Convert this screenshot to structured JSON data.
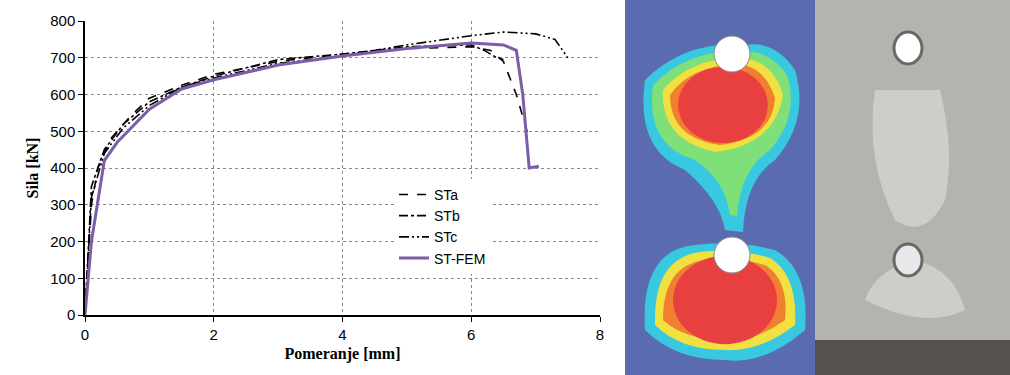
{
  "chart_data": {
    "type": "line",
    "x_label": "Pomeranje [mm]",
    "y_label": "Sila [kN]",
    "xlim": [
      0,
      8
    ],
    "xticks": [
      0,
      2,
      4,
      6,
      8
    ],
    "ylim": [
      0,
      800
    ],
    "yticks": [
      0,
      100,
      200,
      300,
      400,
      500,
      600,
      700,
      800
    ],
    "grid": true,
    "legend": "lower right",
    "series": [
      {
        "name": "STa",
        "color": "#000000",
        "line_style": "dash",
        "x": [
          0,
          0.1,
          0.2,
          0.4,
          0.7,
          1,
          1.5,
          2,
          3,
          4,
          5,
          6,
          6.3,
          6.5,
          6.7,
          6.9
        ],
        "values": [
          0,
          300,
          400,
          480,
          540,
          590,
          625,
          655,
          690,
          710,
          725,
          730,
          720,
          690,
          600,
          480
        ]
      },
      {
        "name": "STb",
        "color": "#000000",
        "line_style": "dashdot",
        "x": [
          0,
          0.1,
          0.3,
          0.6,
          1,
          1.5,
          2,
          3,
          4,
          5,
          6,
          6.2,
          6.4,
          6.5
        ],
        "values": [
          0,
          350,
          450,
          520,
          580,
          620,
          650,
          695,
          710,
          730,
          735,
          720,
          700,
          695
        ]
      },
      {
        "name": "STc",
        "color": "#000000",
        "line_style": "dashdotdot",
        "x": [
          0,
          0.1,
          0.3,
          0.6,
          1,
          1.5,
          2,
          3,
          4,
          5,
          6,
          6.5,
          7,
          7.3,
          7.5
        ],
        "values": [
          0,
          320,
          440,
          510,
          570,
          620,
          645,
          685,
          705,
          735,
          760,
          770,
          765,
          750,
          700
        ]
      },
      {
        "name": "ST-FEM",
        "color": "#7b5ea7",
        "line_style": "solid",
        "x": [
          0,
          0.1,
          0.3,
          0.5,
          1,
          1.5,
          2,
          3,
          4,
          5,
          6,
          6.5,
          6.7,
          6.8,
          6.9,
          7.05
        ],
        "values": [
          0,
          200,
          420,
          470,
          560,
          615,
          640,
          680,
          705,
          725,
          740,
          735,
          720,
          600,
          400,
          405
        ]
      }
    ]
  }
}
